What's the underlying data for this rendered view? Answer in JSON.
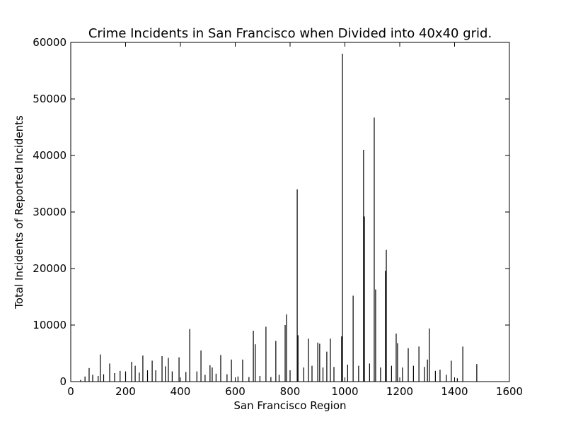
{
  "chart_data": {
    "type": "bar",
    "title": "Crime Incidents in San Francisco when Divided into 40x40 grid.",
    "xlabel": "San Francisco Region",
    "ylabel": "Total Incidents of Reported Incidents",
    "color": "#000000",
    "x": [
      36,
      52,
      67,
      80,
      100,
      108,
      120,
      142,
      160,
      180,
      200,
      222,
      235,
      250,
      263,
      280,
      297,
      310,
      333,
      345,
      356,
      370,
      395,
      420,
      434,
      460,
      475,
      490,
      508,
      516,
      530,
      547,
      570,
      586,
      610,
      627,
      650,
      666,
      673,
      690,
      712,
      730,
      748,
      760,
      782,
      787,
      800,
      826,
      829,
      850,
      867,
      880,
      901,
      908,
      920,
      934,
      947,
      960,
      988,
      991,
      1010,
      1030,
      1050,
      1068,
      1071,
      1090,
      1107,
      1112,
      1130,
      1148,
      1151,
      1170,
      1187,
      1192,
      1210,
      1231,
      1250,
      1270,
      1290,
      1301,
      1308,
      1330,
      1347,
      1370,
      1388,
      1410,
      1430,
      1481
    ],
    "values": [
      300,
      900,
      2400,
      1200,
      1000,
      4800,
      1300,
      3200,
      1500,
      1900,
      1800,
      3500,
      2800,
      1600,
      4600,
      2000,
      3700,
      2000,
      4500,
      2700,
      4200,
      1800,
      4300,
      1700,
      9300,
      1800,
      5500,
      1200,
      2900,
      2500,
      1400,
      4700,
      1300,
      3900,
      900,
      3900,
      800,
      9000,
      6600,
      1000,
      9700,
      800,
      7200,
      1200,
      10000,
      11900,
      2000,
      34000,
      8200,
      2500,
      7600,
      2800,
      6900,
      6700,
      2500,
      5300,
      7600,
      2600,
      8000,
      58000,
      3000,
      15200,
      2800,
      41000,
      29200,
      3200,
      46700,
      16300,
      2500,
      19600,
      23300,
      2800,
      8500,
      6800,
      2500,
      5900,
      2800,
      6200,
      2600,
      3900,
      9400,
      1900,
      2100,
      1200,
      3700,
      600,
      6200,
      3100
    ],
    "xlim": [
      0,
      1600
    ],
    "xticks": [
      0,
      200,
      400,
      600,
      800,
      1000,
      1200,
      1400,
      1600
    ],
    "ylim": [
      0,
      60000
    ],
    "yticks": [
      0,
      10000,
      20000,
      30000,
      40000,
      50000,
      60000
    ]
  }
}
